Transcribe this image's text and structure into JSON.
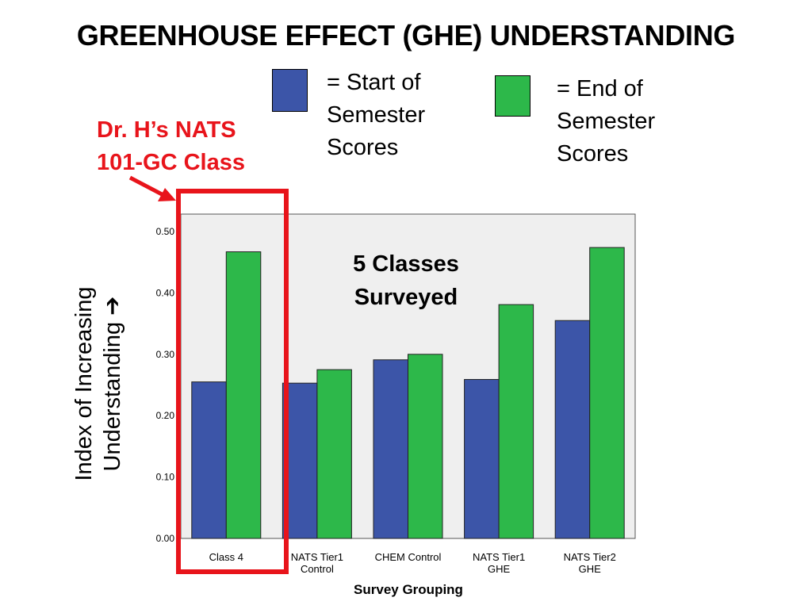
{
  "title": "GREENHOUSE EFFECT (GHE) UNDERSTANDING",
  "legend": [
    {
      "label": "= Start of\nSemester\nScores",
      "color": "#3c55a8"
    },
    {
      "label": "= End of\nSemester\nScores",
      "color": "#2db84a"
    }
  ],
  "annotation": {
    "text": "Dr. H’s NATS\n101-GC Class",
    "color": "#e8141b"
  },
  "callout": "5 Classes\nSurveyed",
  "chart_data": {
    "type": "bar",
    "categories": [
      "Class 4",
      "NATS Tier1\nControl",
      "CHEM Control",
      "NATS Tier1\nGHE",
      "NATS Tier2\nGHE"
    ],
    "series": [
      {
        "values": [
          0.255,
          0.253,
          0.291,
          0.259,
          0.355
        ],
        "color": "#3c55a8"
      },
      {
        "values": [
          0.467,
          0.275,
          0.3,
          0.381,
          0.474
        ],
        "color": "#2db84a"
      }
    ],
    "ylim": [
      0,
      0.5
    ],
    "yticks": [
      "0.00",
      "0.10",
      "0.20",
      "0.30",
      "0.40",
      "0.50"
    ],
    "ylabel": "Index of Increasing\nUnderstanding ➔",
    "xlabel": "Survey Grouping",
    "plot_background": "#efefef",
    "grid": false
  }
}
